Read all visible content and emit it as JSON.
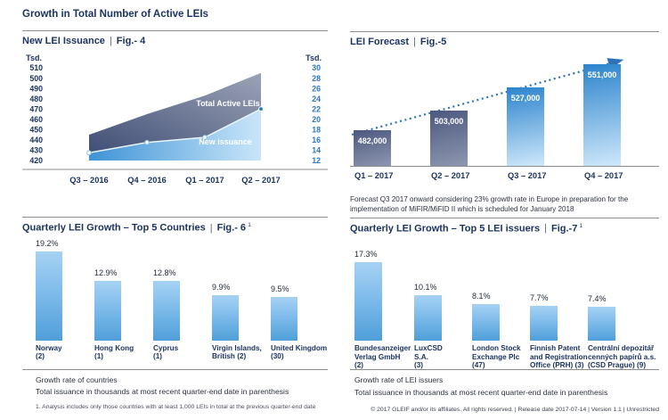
{
  "ui": {
    "pipe": "|"
  },
  "page": {
    "main_title": "Growth in Total Number of Active LEIs",
    "footnote": "1. Analysis includes only those countries with at least 1,000 LEIs in total at the previous quarter-end date",
    "footer_text": "© 2017 GLEIF and/or its affiliates. All rights reserved.  |  Release date 2017-07-14  |  Version 1.1  |  Unrestricted"
  },
  "colors": {
    "navy": "#1d3461",
    "axis_blue": "#2d78c2",
    "trend_blue": "#2d72b5",
    "band_gradient": [
      "#414f76",
      "#9ba3b6"
    ],
    "issuance_area_gradient": [
      "#3f93d6",
      "#c9e6f9"
    ],
    "forecast_gray_bar": [
      "#4b587e",
      "#8e97b0"
    ],
    "forecast_blue_bar": [
      "#2c84cd",
      "#cfe8fa"
    ],
    "growth_bar": [
      "#a6d2f3",
      "#4f9fd9"
    ],
    "rule_gray": "#8f8f8f"
  },
  "chart_data": [
    {
      "id": "fig4",
      "type": "area",
      "title": "New LEI Issuance",
      "fig_label": "Fig.- 4",
      "categories": [
        "Q3 – 2016",
        "Q4 – 2016",
        "Q1 – 2017",
        "Q2 – 2017"
      ],
      "left_axis": {
        "label": "Tsd.",
        "range": [
          420,
          510
        ],
        "ticks": [
          510,
          500,
          490,
          480,
          470,
          460,
          450,
          440,
          430,
          420
        ]
      },
      "right_axis": {
        "label": "Tsd.",
        "range": [
          12,
          30
        ],
        "ticks": [
          30,
          28,
          26,
          24,
          22,
          20,
          18,
          16,
          14,
          12
        ]
      },
      "series": [
        {
          "name": "Total Active LEIs",
          "axis": "left",
          "style": "band",
          "values": [
            445,
            465,
            483,
            505
          ]
        },
        {
          "name": "New issuance",
          "axis": "right",
          "style": "line-area",
          "values": [
            13.5,
            15.5,
            16.5,
            22
          ]
        }
      ],
      "grid": false,
      "legend": "labels-inside-plot"
    },
    {
      "id": "fig5",
      "type": "bar",
      "title": "LEI Forecast",
      "fig_label": "Fig.-5",
      "bars": [
        {
          "category": "Q1 – 2017",
          "value": 482000,
          "label": "482,000",
          "style": "gray"
        },
        {
          "category": "Q2 – 2017",
          "value": 503000,
          "label": "503,000",
          "style": "gray"
        },
        {
          "category": "Q3 – 2017",
          "value": 527000,
          "label": "527,000",
          "style": "blue"
        },
        {
          "category": "Q4 – 2017",
          "value": 551000,
          "label": "551,000",
          "style": "blue"
        }
      ],
      "trend_line": "dotted ascending arrow",
      "caption": "Forecast Q3 2017 onward considering 23% growth rate in Europe in preparation for the implementation of MiFIR/MiFID II which is scheduled for January 2018"
    },
    {
      "id": "fig6",
      "type": "bar",
      "title": "Quarterly LEI Growth – Top 5 Countries",
      "fig_label": "Fig.- 6",
      "footnote_mark": "1",
      "bars": [
        {
          "category": "Norway (2)",
          "label_lines": [
            "Norway",
            "(2)"
          ],
          "value": 19.2,
          "label": "19.2%"
        },
        {
          "category": "Hong Kong (1)",
          "label_lines": [
            "Hong Kong",
            "(1)"
          ],
          "value": 12.9,
          "label": "12.9%"
        },
        {
          "category": "Cyprus (1)",
          "label_lines": [
            "Cyprus",
            "(1)"
          ],
          "value": 12.8,
          "label": "12.8%"
        },
        {
          "category": "Virgin Islands, British (2)",
          "label_lines": [
            "Virgin Islands,",
            "British (2)"
          ],
          "value": 9.9,
          "label": "9.9%"
        },
        {
          "category": "United Kingdom (30)",
          "label_lines": [
            "United Kingdom",
            "(30)"
          ],
          "value": 9.5,
          "label": "9.5%"
        }
      ],
      "notes": [
        "Growth rate of countries",
        "Total issuance in thousands at most recent quarter-end date in parenthesis"
      ]
    },
    {
      "id": "fig7",
      "type": "bar",
      "title": "Quarterly LEI Growth – Top 5 LEI issuers",
      "fig_label": "Fig.-7",
      "footnote_mark": "1",
      "bars": [
        {
          "category": "Bundesanzeiger Verlag GmbH (2)",
          "label_lines": [
            "Bundesanzeiger",
            "Verlag GmbH",
            "(2)"
          ],
          "value": 17.3,
          "label": "17.3%"
        },
        {
          "category": "LuxCSD S.A. (3)",
          "label_lines": [
            "LuxCSD",
            "S.A.",
            "(3)"
          ],
          "value": 10.1,
          "label": "10.1%"
        },
        {
          "category": "London Stock Exchange Plc (47)",
          "label_lines": [
            "London Stock",
            "Exchange Plc",
            "(47)"
          ],
          "value": 8.1,
          "label": "8.1%"
        },
        {
          "category": "Finnish Patent and Registration Office (PRH) (3)",
          "label_lines": [
            "Finnish Patent",
            "and Registration",
            "Office (PRH) (3)"
          ],
          "value": 7.7,
          "label": "7.7%"
        },
        {
          "category": "Centrální depozitář cenných papírů a.s. (CSD Prague) (9)",
          "label_lines": [
            "Centrální depozitář",
            "cenných papírů a.s.",
            "(CSD Prague) (9)"
          ],
          "value": 7.4,
          "label": "7.4%"
        }
      ],
      "notes": [
        "Growth rate of LEI issuers",
        "Total issuance in thousands at most recent quarter-end date in parenthesis"
      ]
    }
  ]
}
